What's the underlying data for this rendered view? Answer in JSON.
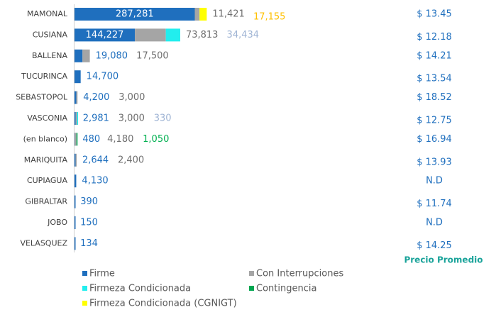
{
  "chart_data": {
    "type": "bar",
    "orientation": "horizontal",
    "stacked": true,
    "categories": [
      "MAMONAL",
      "CUSIANA",
      "BALLENA",
      "TUCURINCA",
      "SEBASTOPOL",
      "VASCONIA",
      "(en blanco)",
      "MARIQUITA",
      "CUPIAGUA",
      "GIBRALTAR",
      "JOBO",
      "VELASQUEZ"
    ],
    "xlim": [
      0,
      500000
    ],
    "series": [
      {
        "name": "Firme",
        "color": "#1f6fbe",
        "label_color": "#1f6fbe",
        "values": [
          287281,
          144227,
          19080,
          14700,
          4200,
          2981,
          480,
          2644,
          4130,
          390,
          150,
          134
        ],
        "value_labels": [
          "287,281",
          "144,227",
          "19,080",
          "14,700",
          "4,200",
          "2,981",
          "480",
          "2,644",
          "4,130",
          "390",
          "150",
          "134"
        ]
      },
      {
        "name": "Con Interrupciones",
        "color": "#a5a5a5",
        "label_color": "#6f6f6f",
        "values": [
          11421,
          73813,
          17500,
          null,
          3000,
          3000,
          4180,
          2400,
          null,
          null,
          null,
          null
        ],
        "value_labels": [
          "11,421",
          "73,813",
          "17,500",
          null,
          "3,000",
          "3,000",
          "4,180",
          "2,400",
          null,
          null,
          null,
          null
        ]
      },
      {
        "name": "Firmeza Condicionada",
        "color": "#22eeee",
        "label_color": "#9fb4d4",
        "values": [
          null,
          34434,
          null,
          null,
          null,
          330,
          null,
          null,
          null,
          null,
          null,
          null
        ],
        "value_labels": [
          null,
          "34,434",
          null,
          null,
          null,
          "330",
          null,
          null,
          null,
          null,
          null,
          null
        ]
      },
      {
        "name": "Contingencia",
        "color": "#00a650",
        "label_color": "#00b050",
        "values": [
          null,
          null,
          null,
          null,
          null,
          null,
          1050,
          null,
          null,
          null,
          null,
          null
        ],
        "value_labels": [
          null,
          null,
          null,
          null,
          null,
          null,
          "1,050",
          null,
          null,
          null,
          null,
          null
        ]
      },
      {
        "name": "Firmeza Condicionada (CGNIGT)",
        "color": "#ffff00",
        "label_color": "#ffc000",
        "values": [
          17155,
          null,
          null,
          null,
          null,
          null,
          null,
          null,
          null,
          null,
          null,
          null
        ],
        "value_labels": [
          "17,155",
          null,
          null,
          null,
          null,
          null,
          null,
          null,
          null,
          null,
          null,
          null
        ]
      }
    ],
    "prices": [
      "$ 13.45",
      "$ 12.18",
      "$ 14.21",
      "$ 13.54",
      "$ 18.52",
      "$ 12.75",
      "$ 16.94",
      "$ 13.93",
      "N.D",
      "$ 11.74",
      "N.D",
      "$ 14.25"
    ],
    "prices_title": "Precio Promedio"
  }
}
